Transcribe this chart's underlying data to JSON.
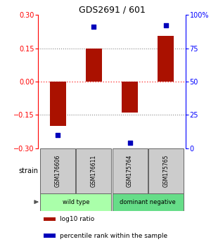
{
  "title": "GDS2691 / 601",
  "samples": [
    "GSM176606",
    "GSM176611",
    "GSM175764",
    "GSM175765"
  ],
  "log10_ratio": [
    -0.2,
    0.148,
    -0.138,
    0.205
  ],
  "percentile_rank": [
    10.0,
    91.0,
    4.0,
    92.0
  ],
  "groups": [
    {
      "label": "wild type",
      "samples": [
        0,
        1
      ],
      "color": "#aaffaa"
    },
    {
      "label": "dominant negative",
      "samples": [
        2,
        3
      ],
      "color": "#66dd88"
    }
  ],
  "group_label": "strain",
  "bar_color": "#aa1100",
  "dot_color": "#0000bb",
  "ylim_left": [
    -0.3,
    0.3
  ],
  "ylim_right": [
    0,
    100
  ],
  "yticks_left": [
    -0.3,
    -0.15,
    0,
    0.15,
    0.3
  ],
  "yticks_right": [
    0,
    25,
    50,
    75,
    100
  ],
  "ytick_labels_right": [
    "0",
    "25",
    "50",
    "75",
    "100%"
  ],
  "hlines": [
    -0.15,
    0.0,
    0.15
  ],
  "hline_colors": [
    "#888888",
    "#ff4444",
    "#888888"
  ],
  "hline_styles": [
    "dotted",
    "dotted",
    "dotted"
  ],
  "legend_items": [
    {
      "color": "#aa1100",
      "label": "log10 ratio"
    },
    {
      "color": "#0000bb",
      "label": "percentile rank within the sample"
    }
  ],
  "bar_width": 0.45
}
